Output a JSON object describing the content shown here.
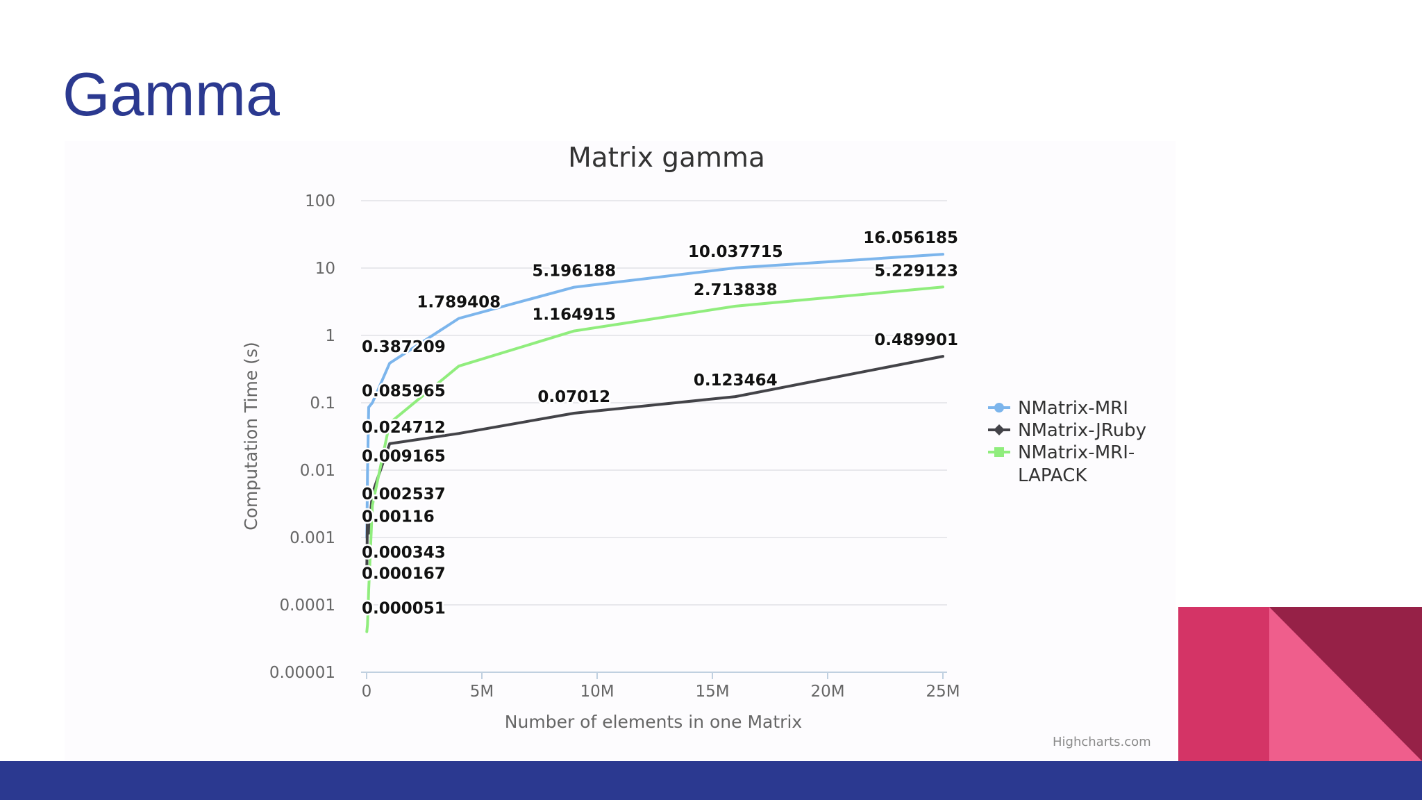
{
  "slide": {
    "title": "Gamma"
  },
  "colors": {
    "mri": "#7cb5ec",
    "jruby": "#434348",
    "lapack": "#90ed7d",
    "title": "#2b3990",
    "footer": "#2b3990",
    "deco_pink": "#d43466",
    "deco_light": "#ef5e8c",
    "deco_dark": "#962147"
  },
  "credit": "Highcharts.com",
  "chart_data": {
    "type": "line",
    "title": "Matrix gamma",
    "xlabel": "Number of elements in one Matrix",
    "ylabel": "Computation Time (s)",
    "yscale": "log",
    "ylim": [
      1e-05,
      100
    ],
    "xlim": [
      0,
      25000000
    ],
    "xticks": [
      {
        "value": 0,
        "label": "0"
      },
      {
        "value": 5000000,
        "label": "5M"
      },
      {
        "value": 10000000,
        "label": "10M"
      },
      {
        "value": 15000000,
        "label": "15M"
      },
      {
        "value": 20000000,
        "label": "20M"
      },
      {
        "value": 25000000,
        "label": "25M"
      }
    ],
    "yticks": [
      {
        "value": 100,
        "label": "100"
      },
      {
        "value": 10,
        "label": "10"
      },
      {
        "value": 1,
        "label": "1"
      },
      {
        "value": 0.1,
        "label": "0.1"
      },
      {
        "value": 0.01,
        "label": "0.01"
      },
      {
        "value": 0.001,
        "label": "0.001"
      },
      {
        "value": 0.0001,
        "label": "0.0001"
      },
      {
        "value": 1e-05,
        "label": "0.00001"
      }
    ],
    "grid": true,
    "legend_position": "right",
    "series": [
      {
        "name": "NMatrix-MRI",
        "color": "#7cb5ec",
        "marker": "circle",
        "x": [
          10000,
          40000,
          90000,
          250000,
          1000000,
          4000000,
          9000000,
          16000000,
          25000000
        ],
        "y": [
          0.001,
          0.009165,
          0.085965,
          0.1,
          0.387209,
          1.789408,
          5.196188,
          10.037715,
          16.056185
        ]
      },
      {
        "name": "NMatrix-JRuby",
        "color": "#434348",
        "marker": "diamond",
        "x": [
          10000,
          40000,
          90000,
          250000,
          1000000,
          4000000,
          9000000,
          16000000,
          25000000
        ],
        "y": [
          0.000343,
          0.002537,
          0.00116,
          0.0045,
          0.024712,
          0.035,
          0.07012,
          0.123464,
          0.489901
        ]
      },
      {
        "name": "NMatrix-MRI-LAPACK",
        "color": "#90ed7d",
        "marker": "square",
        "x": [
          10000,
          40000,
          90000,
          250000,
          1000000,
          4000000,
          9000000,
          16000000,
          25000000
        ],
        "y": [
          4e-05,
          5.1e-05,
          0.000167,
          0.003,
          0.05,
          0.35,
          1.164915,
          2.713838,
          5.229123
        ]
      }
    ],
    "data_labels": [
      {
        "text": "16.056185",
        "x": 25000000,
        "y": 16.056185,
        "series": "NMatrix-MRI"
      },
      {
        "text": "10.037715",
        "x": 16000000,
        "y": 10.037715,
        "series": "NMatrix-MRI"
      },
      {
        "text": "5.196188",
        "x": 9000000,
        "y": 5.196188,
        "series": "NMatrix-MRI"
      },
      {
        "text": "1.789408",
        "x": 4000000,
        "y": 1.789408,
        "series": "NMatrix-MRI"
      },
      {
        "text": "0.387209",
        "x": 1000000,
        "y": 0.387209,
        "series": "NMatrix-MRI"
      },
      {
        "text": "0.085965",
        "x": 90000,
        "y": 0.085965,
        "series": "NMatrix-MRI"
      },
      {
        "text": "0.009165",
        "x": 40000,
        "y": 0.009165,
        "series": "NMatrix-MRI"
      },
      {
        "text": "5.229123",
        "x": 25000000,
        "y": 5.229123,
        "series": "NMatrix-MRI-LAPACK"
      },
      {
        "text": "2.713838",
        "x": 16000000,
        "y": 2.713838,
        "series": "NMatrix-MRI-LAPACK"
      },
      {
        "text": "1.164915",
        "x": 9000000,
        "y": 1.164915,
        "series": "NMatrix-MRI-LAPACK"
      },
      {
        "text": "0.000167",
        "x": 90000,
        "y": 0.000167,
        "series": "NMatrix-MRI-LAPACK"
      },
      {
        "text": "0.000051",
        "x": 40000,
        "y": 5.1e-05,
        "series": "NMatrix-MRI-LAPACK"
      },
      {
        "text": "0.489901",
        "x": 25000000,
        "y": 0.489901,
        "series": "NMatrix-JRuby"
      },
      {
        "text": "0.123464",
        "x": 16000000,
        "y": 0.123464,
        "series": "NMatrix-JRuby"
      },
      {
        "text": "0.07012",
        "x": 9000000,
        "y": 0.07012,
        "series": "NMatrix-JRuby"
      },
      {
        "text": "0.024712",
        "x": 1000000,
        "y": 0.024712,
        "series": "NMatrix-JRuby"
      },
      {
        "text": "0.002537",
        "x": 40000,
        "y": 0.002537,
        "series": "NMatrix-JRuby"
      },
      {
        "text": "0.00116",
        "x": 90000,
        "y": 0.00116,
        "series": "NMatrix-JRuby"
      },
      {
        "text": "0.000343",
        "x": 10000,
        "y": 0.000343,
        "series": "NMatrix-JRuby"
      }
    ]
  }
}
